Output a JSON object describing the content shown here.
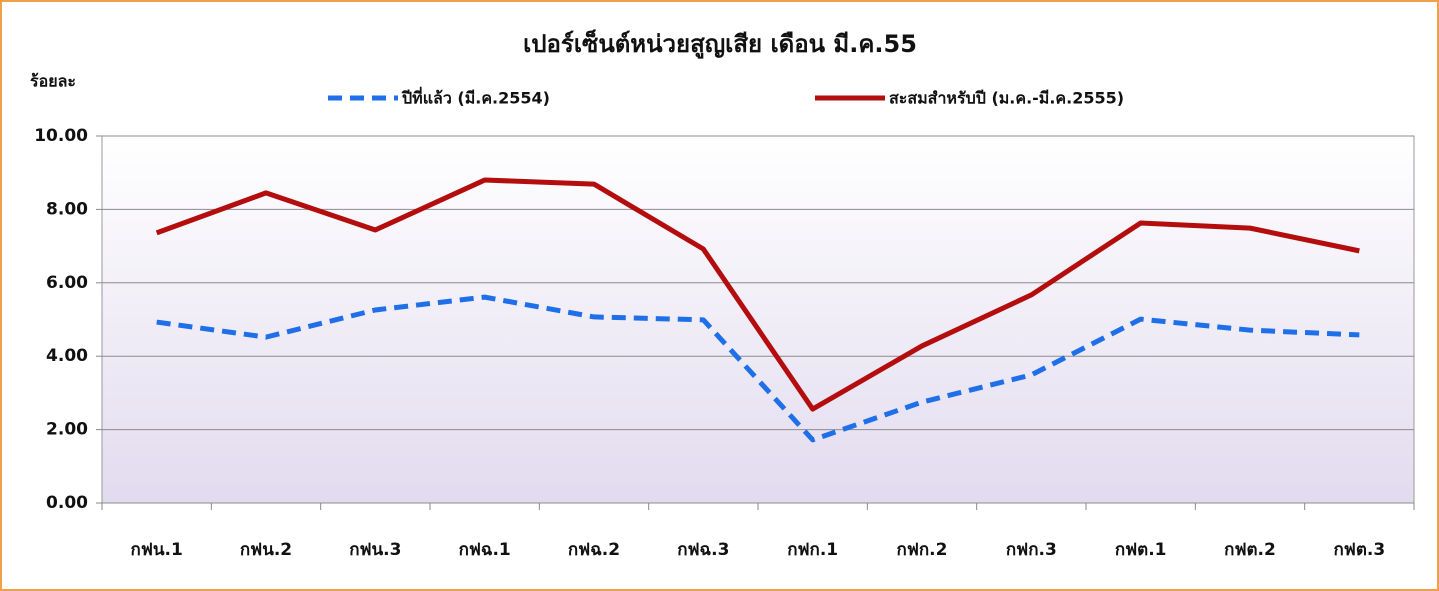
{
  "chart_data": {
    "type": "line",
    "title": "เปอร์เซ็นต์หน่วยสูญเสีย เดือน มี.ค.55",
    "y_label": "ร้อยละ",
    "categories": [
      "กฟน.1",
      "กฟน.2",
      "กฟน.3",
      "กฟฉ.1",
      "กฟฉ.2",
      "กฟฉ.3",
      "กฟก.1",
      "กฟก.2",
      "กฟก.3",
      "กฟต.1",
      "กฟต.2",
      "กฟต.3"
    ],
    "series": [
      {
        "name": "ปีที่แล้ว (มี.ค.2554)",
        "color": "#1f6fe8",
        "dash": true,
        "values": [
          4.93,
          4.52,
          5.26,
          5.61,
          5.07,
          4.99,
          1.72,
          2.75,
          3.49,
          5.01,
          4.71,
          4.58
        ]
      },
      {
        "name": "สะสมสำหรับปี (ม.ค.-มี.ค.2555)",
        "color": "#b40d0d",
        "dash": false,
        "values": [
          7.36,
          8.45,
          7.44,
          8.8,
          8.69,
          6.92,
          2.56,
          4.28,
          5.67,
          7.63,
          7.49,
          6.87
        ]
      }
    ],
    "ylim": [
      0,
      10
    ],
    "yticks": [
      {
        "value": 0,
        "label": "0.00"
      },
      {
        "value": 2,
        "label": "2.00"
      },
      {
        "value": 4,
        "label": "4.00"
      },
      {
        "value": 6,
        "label": "6.00"
      },
      {
        "value": 8,
        "label": "8.00"
      },
      {
        "value": 10,
        "label": "10.00"
      }
    ],
    "grid": true
  }
}
